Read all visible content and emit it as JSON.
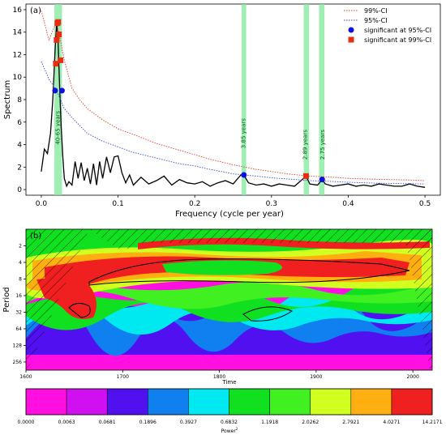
{
  "chart_data": [
    {
      "panel_label": "(a)",
      "type": "line",
      "xlabel": "Frequency (cycle per year)",
      "ylabel": "Spectrum",
      "xlim": [
        -0.02,
        0.52
      ],
      "ylim": [
        -0.5,
        16.5
      ],
      "xticks": [
        "0.0",
        "0.1",
        "0.2",
        "0.3",
        "0.4",
        "0.5"
      ],
      "yticks": [
        "0",
        "2",
        "4",
        "6",
        "8",
        "10",
        "12",
        "14",
        "16"
      ],
      "legend_position": "top-right",
      "legend": [
        "99%-CI",
        "95%-CI",
        "significant at 95%-CI",
        "significant at 99%-CI"
      ],
      "series": [
        {
          "name": "spectrum",
          "color": "#000000",
          "x": [
            0.0,
            0.004,
            0.008,
            0.012,
            0.015,
            0.018,
            0.02,
            0.022,
            0.024,
            0.026,
            0.028,
            0.03,
            0.033,
            0.036,
            0.04,
            0.044,
            0.048,
            0.052,
            0.056,
            0.06,
            0.064,
            0.068,
            0.072,
            0.076,
            0.08,
            0.085,
            0.09,
            0.095,
            0.1,
            0.105,
            0.11,
            0.115,
            0.12,
            0.13,
            0.14,
            0.15,
            0.16,
            0.17,
            0.18,
            0.19,
            0.2,
            0.21,
            0.22,
            0.23,
            0.24,
            0.25,
            0.26,
            0.264,
            0.27,
            0.28,
            0.29,
            0.3,
            0.31,
            0.32,
            0.33,
            0.34,
            0.345,
            0.35,
            0.36,
            0.366,
            0.37,
            0.38,
            0.39,
            0.4,
            0.41,
            0.42,
            0.43,
            0.44,
            0.45,
            0.46,
            0.47,
            0.48,
            0.49,
            0.5
          ],
          "y": [
            1.6,
            3.6,
            3.2,
            5.0,
            8.0,
            12.5,
            14.8,
            13.0,
            9.0,
            5.5,
            3.0,
            1.0,
            0.3,
            0.7,
            0.4,
            2.5,
            1.0,
            2.4,
            0.8,
            1.9,
            0.5,
            2.3,
            0.4,
            2.5,
            1.0,
            2.9,
            1.5,
            2.9,
            3.0,
            1.5,
            0.6,
            1.3,
            0.4,
            1.1,
            0.5,
            0.8,
            1.2,
            0.4,
            0.9,
            0.6,
            0.5,
            0.7,
            0.3,
            0.6,
            0.8,
            0.5,
            1.3,
            1.3,
            0.6,
            0.4,
            0.5,
            0.3,
            0.5,
            0.4,
            0.3,
            0.9,
            1.2,
            0.5,
            0.4,
            0.9,
            0.5,
            0.3,
            0.4,
            0.5,
            0.3,
            0.4,
            0.3,
            0.5,
            0.4,
            0.3,
            0.3,
            0.5,
            0.3,
            0.2
          ]
        },
        {
          "name": "99%-CI",
          "color": "#e8392b",
          "x": [
            0.0,
            0.01,
            0.02,
            0.03,
            0.04,
            0.05,
            0.06,
            0.08,
            0.1,
            0.12,
            0.15,
            0.18,
            0.2,
            0.22,
            0.25,
            0.28,
            0.3,
            0.32,
            0.35,
            0.38,
            0.4,
            0.42,
            0.45,
            0.48,
            0.5
          ],
          "y": [
            15.9,
            13.3,
            15.0,
            11.5,
            9.0,
            8.0,
            7.2,
            6.2,
            5.4,
            4.9,
            4.1,
            3.5,
            3.1,
            2.7,
            2.2,
            1.8,
            1.6,
            1.4,
            1.2,
            1.1,
            1.0,
            0.95,
            0.9,
            0.85,
            0.8
          ]
        },
        {
          "name": "95%-CI",
          "color": "#3a46d8",
          "x": [
            0.0,
            0.01,
            0.02,
            0.03,
            0.04,
            0.05,
            0.06,
            0.08,
            0.1,
            0.12,
            0.15,
            0.18,
            0.2,
            0.22,
            0.25,
            0.28,
            0.3,
            0.32,
            0.35,
            0.38,
            0.4,
            0.42,
            0.45,
            0.48,
            0.5
          ],
          "y": [
            11.4,
            9.8,
            8.8,
            7.2,
            6.4,
            5.7,
            5.0,
            4.3,
            3.8,
            3.3,
            2.8,
            2.3,
            2.1,
            1.8,
            1.4,
            1.2,
            1.05,
            0.95,
            0.8,
            0.72,
            0.65,
            0.6,
            0.55,
            0.52,
            0.5
          ]
        }
      ],
      "sig95_points": [
        [
          0.018,
          8.8
        ],
        [
          0.027,
          8.8
        ],
        [
          0.264,
          1.3
        ],
        [
          0.366,
          0.9
        ]
      ],
      "sig99_points": [
        [
          0.019,
          11.2
        ],
        [
          0.02,
          13.3
        ],
        [
          0.021,
          14.8
        ],
        [
          0.022,
          14.9
        ],
        [
          0.023,
          13.8
        ],
        [
          0.025,
          11.5
        ],
        [
          0.345,
          1.2
        ]
      ],
      "highlight_bands": [
        [
          0.017,
          0.027
        ],
        [
          0.261,
          0.267
        ],
        [
          0.342,
          0.349
        ],
        [
          0.362,
          0.369
        ]
      ],
      "annotations": [
        {
          "text": "40-65 years",
          "x": 0.024,
          "y": 5.5
        },
        {
          "text": "3.85 years",
          "x": 0.266,
          "y": 5.0
        },
        {
          "text": "2.89 years",
          "x": 0.346,
          "y": 4.0
        },
        {
          "text": "2.75 years",
          "x": 0.369,
          "y": 4.0
        }
      ]
    },
    {
      "panel_label": "(b)",
      "type": "heatmap",
      "xlabel": "Time",
      "ylabel": "Period",
      "xlim": [
        1600,
        2020
      ],
      "xticks": [
        "1600",
        "1700",
        "1800",
        "1900",
        "2000"
      ],
      "yticks": [
        "2",
        "4",
        "8",
        "16",
        "32",
        "64",
        "128",
        "256"
      ],
      "colorbar_label": "Power",
      "colorbar_label_superscript": "2",
      "colorbar_levels": [
        "0.0000",
        "0.0063",
        "0.0681",
        "0.1896",
        "0.3927",
        "0.6832",
        "1.1918",
        "2.0262",
        "2.7921",
        "4.0271",
        "14.2171"
      ],
      "colorbar_colors": [
        "#ff10e0",
        "#d010f0",
        "#5010f0",
        "#1080f0",
        "#00e8f0",
        "#10e020",
        "#40f020",
        "#d0ff20",
        "#ffb010",
        "#f02020"
      ]
    }
  ]
}
